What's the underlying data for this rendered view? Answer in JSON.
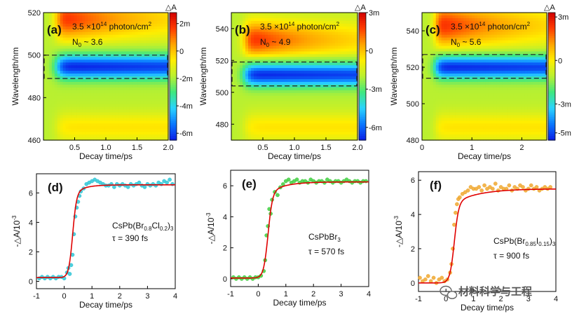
{
  "colors": {
    "colormap": [
      "#0a1ee6",
      "#0a78ff",
      "#2ad3ff",
      "#3fe87f",
      "#b9f030",
      "#ffee00",
      "#ffa500",
      "#ff3c00",
      "#d10000"
    ],
    "fit_line": "#e00000",
    "series": [
      "#2fc6d6",
      "#3fcf3f",
      "#f0a830"
    ]
  },
  "watermark": {
    "icon": "wechat-icon",
    "text": "材料科学与工程"
  },
  "chart_data": [
    {
      "panel": "(a)",
      "type": "heatmap",
      "xlabel": "Decay time/ps",
      "ylabel": "Wavelength/nm",
      "xlim": [
        0,
        2.0
      ],
      "ylim": [
        460,
        520
      ],
      "xticks": [
        0.5,
        1.0,
        1.5,
        2.0
      ],
      "xtick_labels": [
        "0.5",
        "1.0",
        "1.5",
        "2.0"
      ],
      "yticks": [
        460,
        480,
        500,
        520
      ],
      "ytick_labels": [
        "460",
        "480",
        "500",
        "520"
      ],
      "colorbar": {
        "label": "△A",
        "range": [
          -6.5,
          2.8
        ],
        "ticks": [
          2,
          0,
          -2,
          -4,
          -6
        ],
        "tick_labels": [
          "2m",
          "0",
          "-2m",
          "-4m",
          "-6m"
        ]
      },
      "fluence": "3.5 ×10",
      "fluence_exp": "14",
      "fluence_unit": " photon/cm",
      "fluence_unit_exp": "2",
      "n0_prefix": "N",
      "n0_sub": "0",
      "n0_value": " ~ 3.6",
      "box": [
        489,
        500
      ],
      "bleach_center": 494.5,
      "bleach_sigma": 5.5,
      "pia_center": 517,
      "pia_sigma": 10
    },
    {
      "panel": "(b)",
      "type": "heatmap",
      "xlabel": "Decay time/ps",
      "ylabel": "Wavelength/nm",
      "xlim": [
        0,
        2.0
      ],
      "ylim": [
        470,
        550
      ],
      "xticks": [
        0.5,
        1.0,
        1.5,
        2.0
      ],
      "xtick_labels": [
        "0.5",
        "1.0",
        "1.5",
        "2.0"
      ],
      "yticks": [
        480,
        500,
        520,
        540
      ],
      "ytick_labels": [
        "480",
        "500",
        "520",
        "540"
      ],
      "colorbar": {
        "label": "△A",
        "range": [
          -7,
          3
        ],
        "ticks": [
          3,
          0,
          -3,
          -6
        ],
        "tick_labels": [
          "3m",
          "0",
          "-3m",
          "-6m"
        ]
      },
      "fluence": "3.5 ×10",
      "fluence_exp": "14",
      "fluence_unit": " photon/cm",
      "fluence_unit_exp": "2",
      "n0_prefix": "N",
      "n0_sub": "0",
      "n0_value": " ~ 4.9",
      "box": [
        504,
        519
      ],
      "bleach_center": 511,
      "bleach_sigma": 7,
      "pia_center": 533,
      "pia_sigma": 12
    },
    {
      "panel": "(c)",
      "type": "heatmap",
      "xlabel": "Decay time/ps",
      "ylabel": "Wavelength/nm",
      "xlim": [
        0,
        2.5
      ],
      "ylim": [
        480,
        550
      ],
      "xticks": [
        0,
        1,
        2
      ],
      "xtick_labels": [
        "0",
        "1",
        "2"
      ],
      "yticks": [
        480,
        500,
        520,
        540
      ],
      "ytick_labels": [
        "480",
        "500",
        "520",
        "540"
      ],
      "colorbar": {
        "label": "△A",
        "range": [
          -5.5,
          3.3
        ],
        "ticks": [
          3,
          0,
          -3,
          -5
        ],
        "tick_labels": [
          "3m",
          "0",
          "-3m",
          "-5m"
        ]
      },
      "fluence": "3.5 ×10",
      "fluence_exp": "14",
      "fluence_unit": " photon/cm",
      "fluence_unit_exp": "2",
      "n0_prefix": "N",
      "n0_sub": "0",
      "n0_value": " ~ 5.6",
      "box": [
        514,
        527
      ],
      "bleach_center": 520,
      "bleach_sigma": 6,
      "pia_center": 543,
      "pia_sigma": 12
    },
    {
      "panel": "(d)",
      "type": "scatter",
      "xlabel": "Decay time/ps",
      "ylabel_base": "-△A/10",
      "ylabel_exp": "-3",
      "xlim": [
        -1,
        4
      ],
      "ylim": [
        -0.5,
        7.3
      ],
      "xticks": [
        -1,
        0,
        1,
        2,
        3,
        4
      ],
      "xtick_labels": [
        "-1",
        "0",
        "1",
        "2",
        "3",
        "4"
      ],
      "yticks": [
        0,
        2,
        4,
        6
      ],
      "ytick_labels": [
        "0",
        "2",
        "4",
        "6"
      ],
      "compound_parts": [
        {
          "t": "CsPb(Br",
          "sub": false
        },
        {
          "t": "0.8",
          "sub": true
        },
        {
          "t": "Cl",
          "sub": false
        },
        {
          "t": "0.2",
          "sub": true
        },
        {
          "t": ")",
          "sub": false
        },
        {
          "t": "3",
          "sub": true
        }
      ],
      "tau": "τ = 390 fs",
      "fit": {
        "baseline": 0.25,
        "plateau": 6.55,
        "rise_center": 0.3,
        "rise_width": 0.07,
        "tau_ps": 0.39,
        "rise_frac": 0.9
      },
      "points": {
        "x": [
          -0.9,
          -0.8,
          -0.7,
          -0.6,
          -0.5,
          -0.4,
          -0.3,
          -0.2,
          -0.1,
          0.0,
          0.1,
          0.15,
          0.2,
          0.25,
          0.3,
          0.35,
          0.4,
          0.45,
          0.5,
          0.55,
          0.6,
          0.7,
          0.8,
          0.9,
          1.0,
          1.1,
          1.2,
          1.3,
          1.4,
          1.5,
          1.6,
          1.7,
          1.8,
          1.9,
          2.0,
          2.1,
          2.2,
          2.3,
          2.4,
          2.5,
          2.6,
          2.7,
          2.8,
          2.9,
          3.0,
          3.1,
          3.2,
          3.3,
          3.4,
          3.5,
          3.6,
          3.7,
          3.8,
          3.9
        ],
        "y": [
          0.2,
          0.3,
          0.2,
          0.3,
          0.2,
          0.3,
          0.2,
          0.3,
          0.3,
          0.2,
          0.6,
          0.9,
          0.5,
          1.1,
          1.8,
          3.2,
          4.4,
          5.0,
          5.4,
          5.8,
          6.1,
          6.3,
          6.6,
          6.7,
          6.8,
          6.9,
          6.8,
          6.7,
          6.6,
          6.5,
          6.5,
          6.6,
          6.4,
          6.6,
          6.5,
          6.6,
          6.5,
          6.4,
          6.6,
          6.5,
          6.6,
          6.7,
          6.5,
          6.4,
          6.6,
          6.5,
          6.6,
          6.5,
          6.7,
          6.6,
          6.8,
          6.7,
          6.9,
          6.6
        ]
      }
    },
    {
      "panel": "(e)",
      "type": "scatter",
      "xlabel": "Decay time/ps",
      "ylabel_base": "-△A/10",
      "ylabel_exp": "-3",
      "xlim": [
        -1,
        4
      ],
      "ylim": [
        -0.5,
        7.0
      ],
      "xticks": [
        -1,
        0,
        1,
        2,
        3,
        4
      ],
      "xtick_labels": [
        "-1",
        "0",
        "1",
        "2",
        "3",
        "4"
      ],
      "yticks": [
        0,
        2,
        4,
        6
      ],
      "ytick_labels": [
        "0",
        "2",
        "4",
        "6"
      ],
      "compound_parts": [
        {
          "t": "CsPbBr",
          "sub": false
        },
        {
          "t": "3",
          "sub": true
        }
      ],
      "tau": "τ = 570 fs",
      "fit": {
        "baseline": 0.05,
        "plateau": 6.25,
        "rise_center": 0.35,
        "rise_width": 0.08,
        "tau_ps": 0.57,
        "rise_frac": 0.88
      },
      "points": {
        "x": [
          -0.9,
          -0.8,
          -0.7,
          -0.6,
          -0.5,
          -0.4,
          -0.3,
          -0.2,
          -0.1,
          0.0,
          0.1,
          0.2,
          0.25,
          0.3,
          0.35,
          0.4,
          0.45,
          0.5,
          0.6,
          0.7,
          0.8,
          0.9,
          1.0,
          1.1,
          1.2,
          1.3,
          1.4,
          1.5,
          1.6,
          1.7,
          1.8,
          1.9,
          2.0,
          2.1,
          2.2,
          2.3,
          2.4,
          2.5,
          2.6,
          2.7,
          2.8,
          2.9,
          3.0,
          3.1,
          3.2,
          3.3,
          3.4,
          3.5,
          3.6,
          3.7,
          3.8,
          3.9
        ],
        "y": [
          0.1,
          0.0,
          0.1,
          0.0,
          0.1,
          0.0,
          0.1,
          0.0,
          0.1,
          0.1,
          0.2,
          0.5,
          1.2,
          2.8,
          3.4,
          4.5,
          4.2,
          5.1,
          5.6,
          5.4,
          5.9,
          6.1,
          6.3,
          6.4,
          6.2,
          6.3,
          6.4,
          6.2,
          6.3,
          6.3,
          6.2,
          6.4,
          6.3,
          6.2,
          6.3,
          6.3,
          6.2,
          6.4,
          6.3,
          6.2,
          6.3,
          6.3,
          6.2,
          6.3,
          6.4,
          6.3,
          6.2,
          6.3,
          6.3,
          6.2,
          6.3,
          6.3
        ]
      }
    },
    {
      "panel": "(f)",
      "type": "scatter",
      "xlabel": "Decay time/ps",
      "ylabel_base": "-△A/10",
      "ylabel_exp": "-3",
      "xlim": [
        -1,
        4
      ],
      "ylim": [
        -0.5,
        6.5
      ],
      "xticks": [
        -1,
        0,
        1,
        2,
        3,
        4
      ],
      "xtick_labels": [
        "-1",
        "0",
        "1",
        "2",
        "3",
        "4"
      ],
      "yticks": [
        0,
        2,
        4,
        6
      ],
      "ytick_labels": [
        "0",
        "2",
        "4",
        "6"
      ],
      "compound_parts": [
        {
          "t": "CsPb(Br",
          "sub": false
        },
        {
          "t": "0.85",
          "sub": true
        },
        {
          "t": "I",
          "sub": false
        },
        {
          "t": "0.15",
          "sub": true
        },
        {
          "t": ")",
          "sub": false
        },
        {
          "t": "3",
          "sub": true
        }
      ],
      "tau": "τ = 900 fs",
      "fit": {
        "baseline": 0.0,
        "plateau": 5.5,
        "rise_center": 0.3,
        "rise_width": 0.08,
        "tau_ps": 0.9,
        "rise_frac": 0.85
      },
      "points": {
        "x": [
          -0.95,
          -0.85,
          -0.75,
          -0.65,
          -0.55,
          -0.45,
          -0.35,
          -0.25,
          -0.15,
          -0.05,
          0.05,
          0.15,
          0.2,
          0.25,
          0.3,
          0.35,
          0.4,
          0.45,
          0.5,
          0.6,
          0.7,
          0.8,
          0.9,
          1.0,
          1.1,
          1.2,
          1.3,
          1.4,
          1.5,
          1.6,
          1.7,
          1.8,
          1.9,
          2.0,
          2.1,
          2.2,
          2.3,
          2.4,
          2.5,
          2.6,
          2.7,
          2.8,
          2.9,
          3.0,
          3.1,
          3.2,
          3.3,
          3.4,
          3.5,
          3.6,
          3.7,
          3.8
        ],
        "y": [
          0.3,
          0.1,
          0.2,
          0.4,
          0.1,
          0.3,
          0.0,
          0.2,
          0.3,
          0.1,
          0.2,
          0.6,
          1.1,
          2.0,
          3.4,
          4.1,
          4.6,
          4.9,
          5.0,
          5.2,
          5.3,
          5.4,
          5.6,
          5.5,
          5.5,
          5.6,
          5.4,
          5.7,
          5.5,
          5.6,
          5.5,
          5.8,
          5.4,
          5.6,
          5.5,
          5.5,
          5.7,
          5.4,
          5.6,
          5.5,
          5.7,
          5.6,
          5.4,
          5.5,
          5.7,
          5.5,
          5.6,
          5.4,
          5.5,
          5.6,
          5.5,
          5.6
        ]
      }
    }
  ]
}
